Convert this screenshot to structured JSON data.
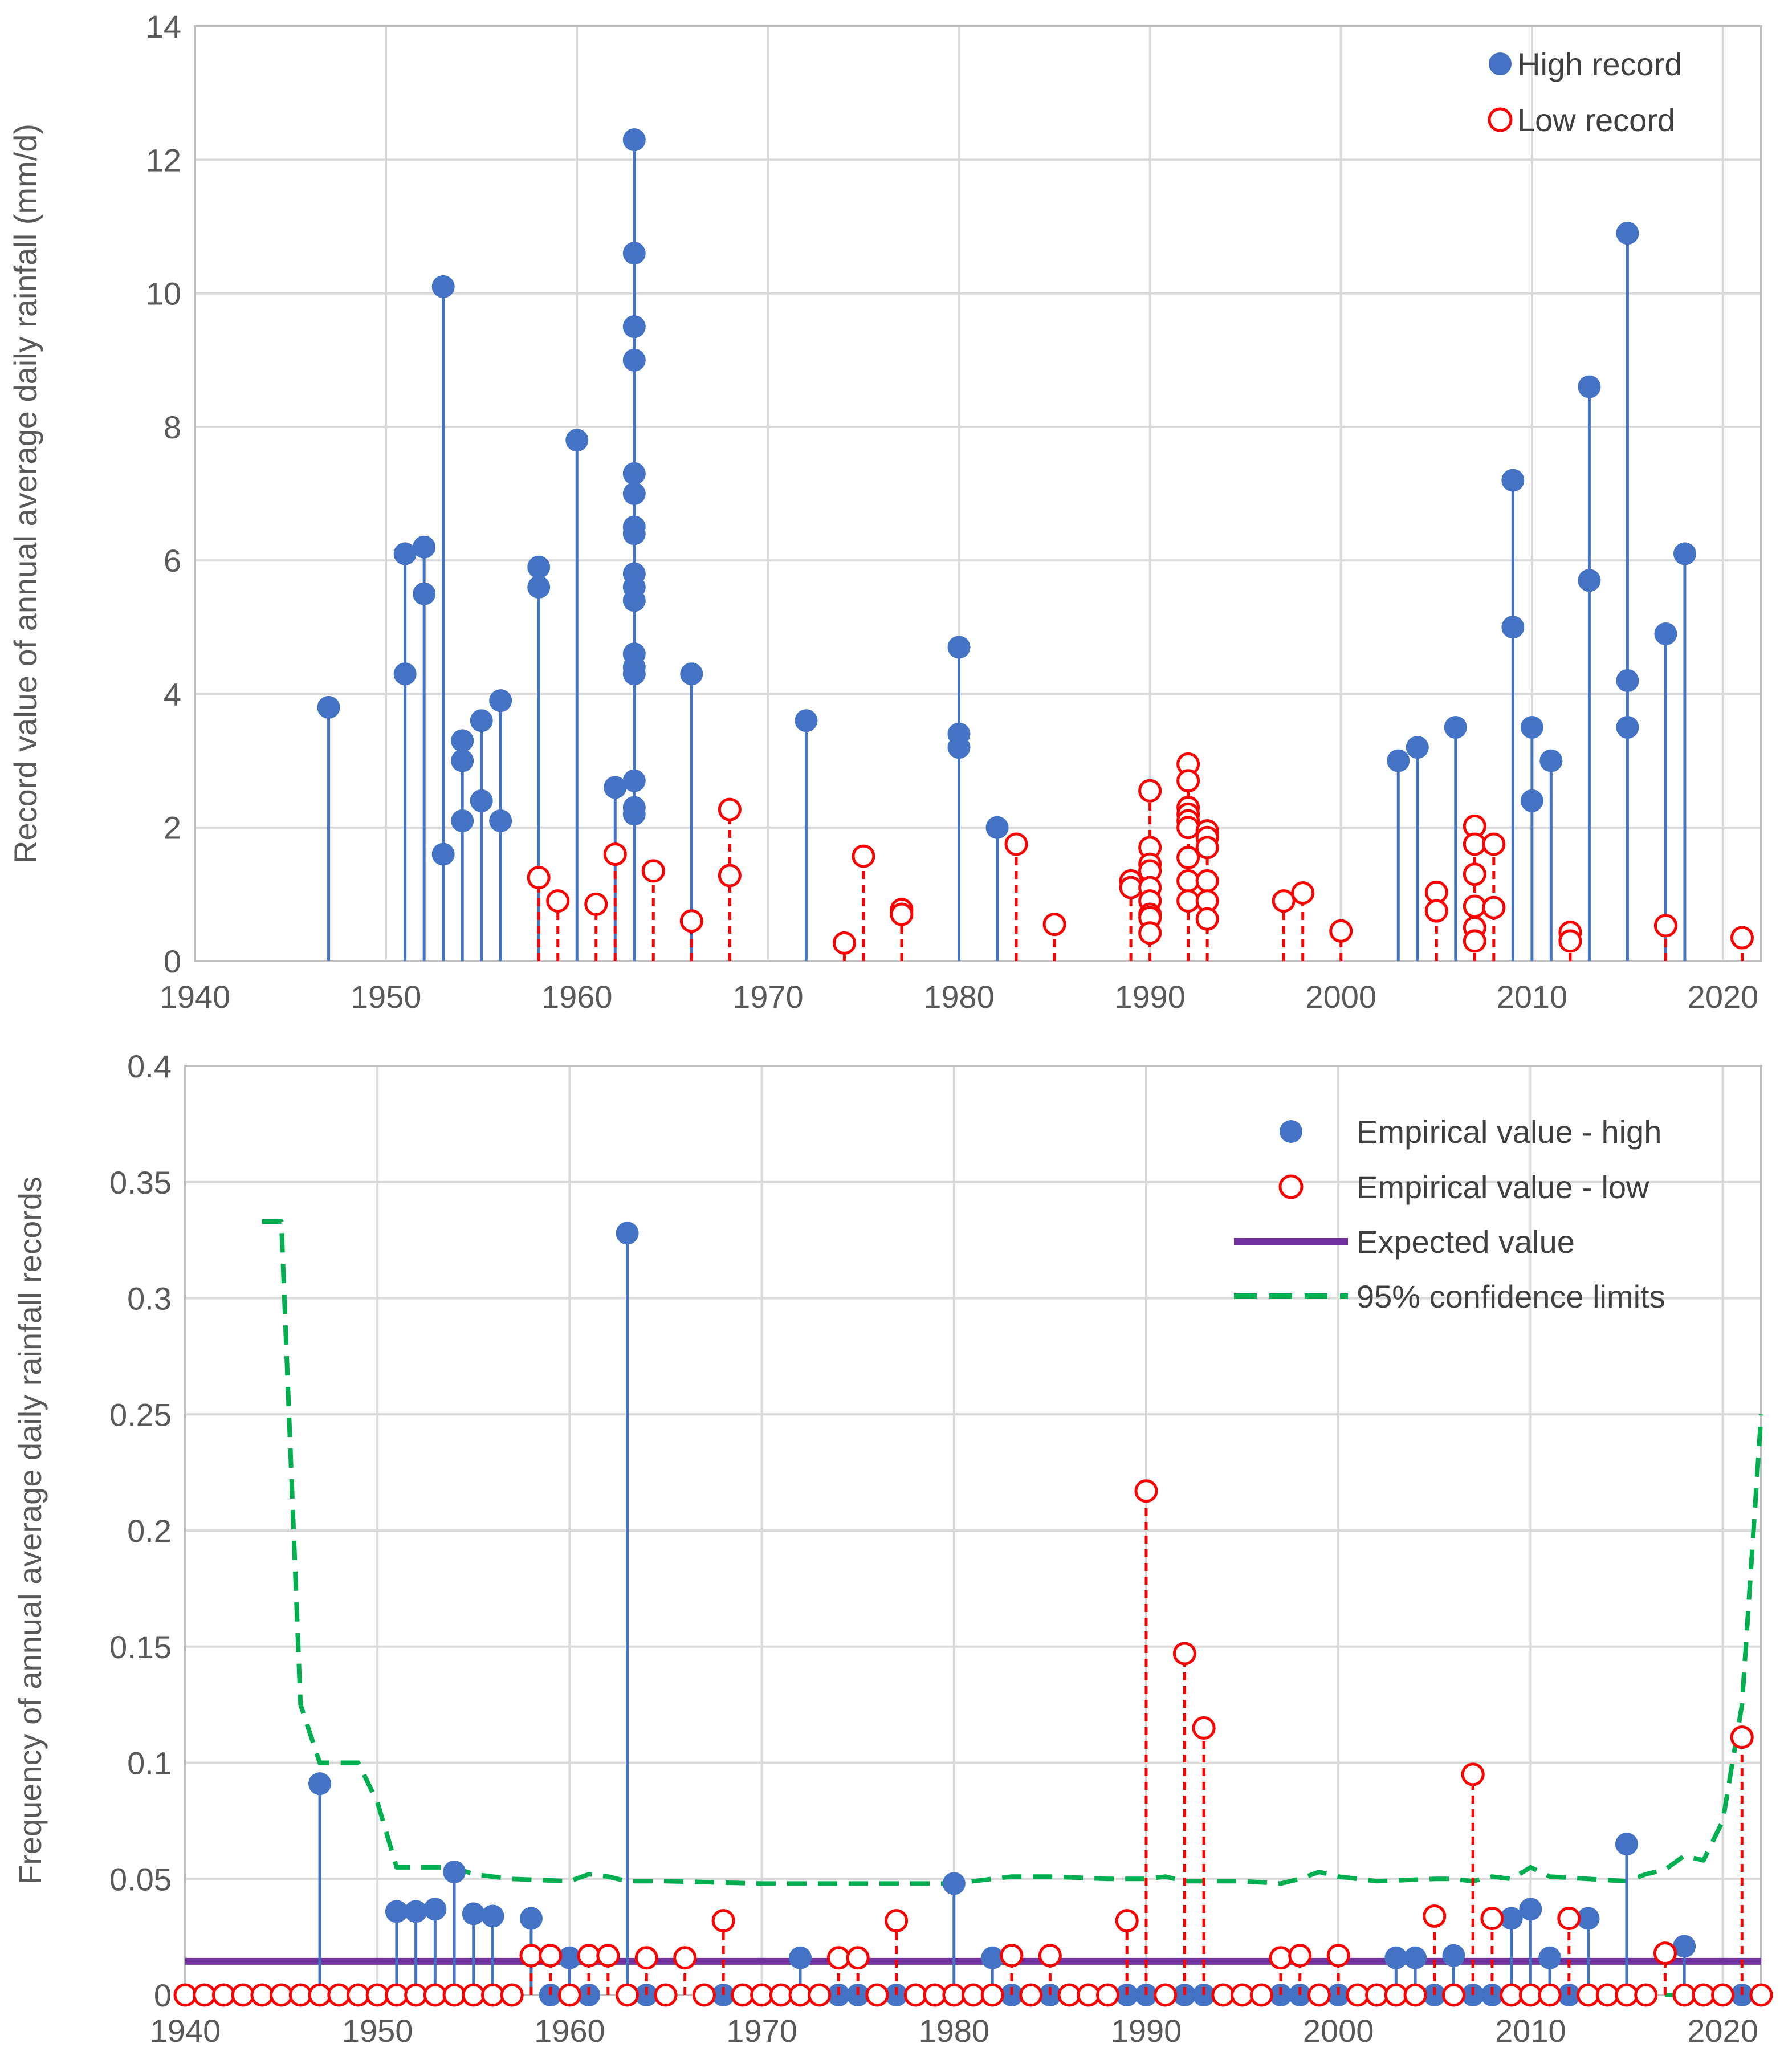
{
  "colors": {
    "high": "#4472c4",
    "low": "#ff0000",
    "expected": "#7030a0",
    "confidence": "#00b050",
    "grid": "#d9d9d9",
    "text": "#595959"
  },
  "chart_data": [
    {
      "type": "scatter",
      "title": "",
      "xlabel": "",
      "ylabel": "Record value of annual average daily rainfall (mm/d)",
      "xlim": [
        1940,
        2022
      ],
      "ylim": [
        0,
        14
      ],
      "xticks": [
        "1940",
        "1950",
        "1960",
        "1970",
        "1980",
        "1990",
        "2000",
        "2010",
        "2020"
      ],
      "yticks": [
        "0",
        "2",
        "4",
        "6",
        "8",
        "10",
        "12",
        "14"
      ],
      "grid": true,
      "legend_position": "top-right",
      "series": [
        {
          "name": "High record",
          "marker": "filled-circle",
          "stem": "solid",
          "points": [
            [
              1947,
              3.8
            ],
            [
              1951,
              6.1
            ],
            [
              1951,
              4.3
            ],
            [
              1952,
              6.2
            ],
            [
              1952,
              5.5
            ],
            [
              1953,
              10.1
            ],
            [
              1953,
              1.6
            ],
            [
              1954,
              3.3
            ],
            [
              1954,
              3.0
            ],
            [
              1954,
              2.1
            ],
            [
              1955,
              3.6
            ],
            [
              1955,
              2.4
            ],
            [
              1956,
              3.9
            ],
            [
              1956,
              2.1
            ],
            [
              1958,
              5.9
            ],
            [
              1958,
              5.6
            ],
            [
              1960,
              7.8
            ],
            [
              1962,
              2.6
            ],
            [
              1963,
              12.3
            ],
            [
              1963,
              10.6
            ],
            [
              1963,
              9.5
            ],
            [
              1963,
              9.0
            ],
            [
              1963,
              7.3
            ],
            [
              1963,
              7.0
            ],
            [
              1963,
              6.5
            ],
            [
              1963,
              6.4
            ],
            [
              1963,
              5.8
            ],
            [
              1963,
              5.6
            ],
            [
              1963,
              5.4
            ],
            [
              1963,
              4.6
            ],
            [
              1963,
              4.4
            ],
            [
              1963,
              4.3
            ],
            [
              1963,
              2.7
            ],
            [
              1963,
              2.3
            ],
            [
              1963,
              2.2
            ],
            [
              1966,
              4.3
            ],
            [
              1972,
              3.6
            ],
            [
              1980,
              4.7
            ],
            [
              1980,
              3.4
            ],
            [
              1980,
              3.2
            ],
            [
              1982,
              2.0
            ],
            [
              2003,
              3.0
            ],
            [
              2004,
              3.2
            ],
            [
              2006,
              3.5
            ],
            [
              2009,
              7.2
            ],
            [
              2009,
              5.0
            ],
            [
              2010,
              3.5
            ],
            [
              2010,
              2.4
            ],
            [
              2011,
              3.0
            ],
            [
              2013,
              8.6
            ],
            [
              2013,
              5.7
            ],
            [
              2015,
              10.9
            ],
            [
              2015,
              4.2
            ],
            [
              2015,
              3.5
            ],
            [
              2017,
              4.9
            ],
            [
              2018,
              6.1
            ]
          ]
        },
        {
          "name": "Low record",
          "marker": "open-circle",
          "stem": "dashed",
          "points": [
            [
              1958,
              1.25
            ],
            [
              1959,
              0.9
            ],
            [
              1961,
              0.85
            ],
            [
              1962,
              1.6
            ],
            [
              1964,
              1.35
            ],
            [
              1966,
              0.6
            ],
            [
              1968,
              2.27
            ],
            [
              1968,
              1.28
            ],
            [
              1974,
              0.27
            ],
            [
              1975,
              1.57
            ],
            [
              1977,
              0.77
            ],
            [
              1977,
              0.7
            ],
            [
              1983,
              1.75
            ],
            [
              1985,
              0.55
            ],
            [
              1989,
              1.2
            ],
            [
              1989,
              1.1
            ],
            [
              1990,
              2.55
            ],
            [
              1990,
              1.7
            ],
            [
              1990,
              1.45
            ],
            [
              1990,
              1.35
            ],
            [
              1990,
              1.1
            ],
            [
              1990,
              0.9
            ],
            [
              1990,
              0.7
            ],
            [
              1990,
              0.65
            ],
            [
              1990,
              0.42
            ],
            [
              1992,
              2.95
            ],
            [
              1992,
              2.7
            ],
            [
              1992,
              2.3
            ],
            [
              1992,
              2.2
            ],
            [
              1992,
              2.1
            ],
            [
              1992,
              2.0
            ],
            [
              1992,
              1.55
            ],
            [
              1992,
              1.2
            ],
            [
              1992,
              0.9
            ],
            [
              1993,
              1.95
            ],
            [
              1993,
              1.85
            ],
            [
              1993,
              1.7
            ],
            [
              1993,
              1.2
            ],
            [
              1993,
              0.9
            ],
            [
              1993,
              0.63
            ],
            [
              1997,
              0.9
            ],
            [
              1998,
              1.02
            ],
            [
              2000,
              0.45
            ],
            [
              2005,
              1.03
            ],
            [
              2005,
              0.75
            ],
            [
              2007,
              2.02
            ],
            [
              2007,
              1.75
            ],
            [
              2007,
              1.3
            ],
            [
              2007,
              0.82
            ],
            [
              2007,
              0.5
            ],
            [
              2007,
              0.3
            ],
            [
              2008,
              1.75
            ],
            [
              2008,
              0.8
            ],
            [
              2012,
              0.43
            ],
            [
              2012,
              0.3
            ],
            [
              2017,
              0.53
            ],
            [
              2021,
              0.35
            ]
          ]
        }
      ]
    },
    {
      "type": "scatter",
      "title": "",
      "xlabel": "",
      "ylabel": "Frequency of annual average daily rainfall records",
      "xlim": [
        1940,
        2022
      ],
      "ylim": [
        0,
        0.4
      ],
      "xticks": [
        "1940",
        "1950",
        "1960",
        "1970",
        "1980",
        "1990",
        "2000",
        "2010",
        "2020"
      ],
      "yticks": [
        "0",
        "0.05",
        "0.1",
        "0.15",
        "0.2",
        "0.25",
        "0.3",
        "0.35",
        "0.4"
      ],
      "grid": true,
      "legend_position": "top-right",
      "series": [
        {
          "name": "Empirical value - high",
          "marker": "filled-circle",
          "stem": "solid",
          "points": [
            [
              1947,
              0.091
            ],
            [
              1951,
              0.036
            ],
            [
              1952,
              0.036
            ],
            [
              1953,
              0.037
            ],
            [
              1954,
              0.053
            ],
            [
              1955,
              0.035
            ],
            [
              1956,
              0.034
            ],
            [
              1958,
              0.033
            ],
            [
              1959,
              0
            ],
            [
              1960,
              0.016
            ],
            [
              1961,
              0
            ],
            [
              1963,
              0.328
            ],
            [
              1964,
              0
            ],
            [
              1968,
              0
            ],
            [
              1972,
              0.016
            ],
            [
              1974,
              0
            ],
            [
              1975,
              0
            ],
            [
              1977,
              0
            ],
            [
              1980,
              0.048
            ],
            [
              1982,
              0.016
            ],
            [
              1983,
              0
            ],
            [
              1985,
              0
            ],
            [
              1989,
              0
            ],
            [
              1990,
              0
            ],
            [
              1992,
              0
            ],
            [
              1993,
              0
            ],
            [
              1997,
              0
            ],
            [
              1998,
              0
            ],
            [
              2000,
              0
            ],
            [
              2003,
              0.016
            ],
            [
              2004,
              0.016
            ],
            [
              2005,
              0
            ],
            [
              2006,
              0.017
            ],
            [
              2007,
              0
            ],
            [
              2008,
              0
            ],
            [
              2009,
              0.033
            ],
            [
              2010,
              0.037
            ],
            [
              2011,
              0.016
            ],
            [
              2012,
              0
            ],
            [
              2013,
              0.033
            ],
            [
              2015,
              0.065
            ],
            [
              2018,
              0.021
            ],
            [
              2021,
              0
            ]
          ]
        },
        {
          "name": "Empirical value - low",
          "marker": "open-circle",
          "stem": "dashed",
          "points": [
            [
              1958,
              0.017
            ],
            [
              1959,
              0.017
            ],
            [
              1961,
              0.017
            ],
            [
              1962,
              0.017
            ],
            [
              1964,
              0.016
            ],
            [
              1966,
              0.016
            ],
            [
              1968,
              0.032
            ],
            [
              1974,
              0.016
            ],
            [
              1975,
              0.016
            ],
            [
              1977,
              0.032
            ],
            [
              1983,
              0.017
            ],
            [
              1985,
              0.017
            ],
            [
              1989,
              0.032
            ],
            [
              1990,
              0.217
            ],
            [
              1992,
              0.147
            ],
            [
              1993,
              0.115
            ],
            [
              1997,
              0.016
            ],
            [
              1998,
              0.017
            ],
            [
              2000,
              0.017
            ],
            [
              2005,
              0.034
            ],
            [
              2007,
              0.095
            ],
            [
              2008,
              0.033
            ],
            [
              2012,
              0.033
            ],
            [
              2017,
              0.018
            ],
            [
              2021,
              0.111
            ]
          ],
          "zero_years": [
            1940,
            1941,
            1942,
            1943,
            1944,
            1945,
            1946,
            1947,
            1948,
            1949,
            1950,
            1951,
            1952,
            1953,
            1954,
            1955,
            1956,
            1957,
            1960,
            1963,
            1965,
            1967,
            1969,
            1970,
            1971,
            1972,
            1973,
            1976,
            1978,
            1979,
            1980,
            1981,
            1982,
            1984,
            1986,
            1987,
            1988,
            1991,
            1994,
            1995,
            1996,
            1999,
            2001,
            2002,
            2003,
            2004,
            2006,
            2009,
            2010,
            2011,
            2013,
            2014,
            2015,
            2016,
            2018,
            2019,
            2020,
            2022
          ]
        },
        {
          "name": "Expected value",
          "line": "solid",
          "points": [
            [
              1940,
              0.0145
            ],
            [
              2022,
              0.0145
            ]
          ]
        },
        {
          "name": "95% confidence limits",
          "line": "dashed",
          "points": [
            [
              1944,
              0.333
            ],
            [
              1945,
              0.333
            ],
            [
              1946,
              0.125
            ],
            [
              1947,
              0.1
            ],
            [
              1949,
              0.1
            ],
            [
              1950,
              0.083
            ],
            [
              1951,
              0.055
            ],
            [
              1953,
              0.055
            ],
            [
              1954,
              0.055
            ],
            [
              1955,
              0.052
            ],
            [
              1957,
              0.05
            ],
            [
              1960,
              0.049
            ],
            [
              1961,
              0.052
            ],
            [
              1962,
              0.051
            ],
            [
              1963,
              0.049
            ],
            [
              1965,
              0.049
            ],
            [
              1970,
              0.048
            ],
            [
              1980,
              0.048
            ],
            [
              1981,
              0.049
            ],
            [
              1983,
              0.051
            ],
            [
              1985,
              0.051
            ],
            [
              1988,
              0.05
            ],
            [
              1990,
              0.05
            ],
            [
              1991,
              0.051
            ],
            [
              1992,
              0.049
            ],
            [
              1995,
              0.049
            ],
            [
              1997,
              0.048
            ],
            [
              1998,
              0.05
            ],
            [
              1999,
              0.053
            ],
            [
              2000,
              0.051
            ],
            [
              2002,
              0.049
            ],
            [
              2005,
              0.05
            ],
            [
              2006,
              0.05
            ],
            [
              2007,
              0.049
            ],
            [
              2008,
              0.051
            ],
            [
              2009,
              0.05
            ],
            [
              2010,
              0.055
            ],
            [
              2011,
              0.051
            ],
            [
              2013,
              0.05
            ],
            [
              2015,
              0.049
            ],
            [
              2016,
              0.052
            ],
            [
              2017,
              0.054
            ],
            [
              2018,
              0.06
            ],
            [
              2019,
              0.058
            ],
            [
              2020,
              0.075
            ],
            [
              2021,
              0.125
            ],
            [
              2022,
              0.25
            ]
          ],
          "lower_points": [
            [
              1963,
              0
            ],
            [
              1965,
              0
            ],
            [
              1966,
              0
            ],
            [
              2017,
              0
            ],
            [
              2019,
              0
            ],
            [
              2020,
              0
            ]
          ]
        }
      ]
    }
  ]
}
